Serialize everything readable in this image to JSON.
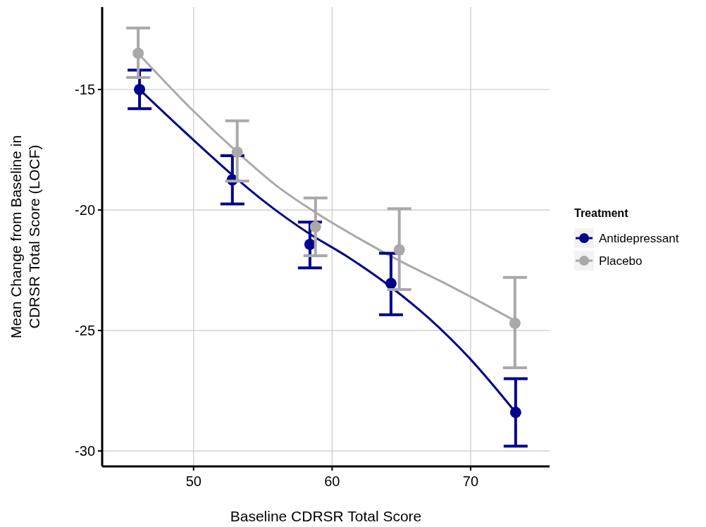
{
  "chart_data": {
    "type": "scatter",
    "xlabel": "Baseline CDRSR Total Score",
    "ylabel": "Mean Change from Baseline in CDRSR Total Score (LOCF)",
    "legend_title": "Treatment",
    "legend": "right",
    "grid": true,
    "marker": "circle",
    "xlim": [
      43.4,
      75.7
    ],
    "ylim": [
      -30.64,
      -11.58
    ],
    "xticks": [
      50,
      60,
      70
    ],
    "yticks": [
      -30,
      -25,
      -20,
      -15
    ],
    "series": [
      {
        "type": "line",
        "marker": "none",
        "color": "#00008b",
        "x": [
          46.1,
          50,
          52.8,
          55,
          58.4,
          61,
          64.25,
          67,
          70,
          73.25
        ],
        "values": [
          -15.0,
          -17.1,
          -18.55,
          -19.6,
          -21.0,
          -21.9,
          -23.2,
          -24.5,
          -26.2,
          -28.4
        ]
      },
      {
        "type": "line",
        "marker": "none",
        "color": "#a9a9a9",
        "x": [
          46,
          50,
          53.15,
          56,
          58.8,
          62,
          64.85,
          68,
          70,
          73.2
        ],
        "values": [
          -13.5,
          -15.9,
          -17.6,
          -19.0,
          -20.1,
          -21.2,
          -22.1,
          -23.0,
          -23.6,
          -24.6
        ]
      },
      {
        "name": "Antidepressant",
        "color": "#00008b",
        "x": [
          46.1,
          52.8,
          58.4,
          64.25,
          73.25
        ],
        "values": [
          -15.0,
          -18.75,
          -21.43,
          -23.05,
          -28.4
        ],
        "errors": [
          [
            -15.8,
            -14.2
          ],
          [
            -19.75,
            -17.75
          ],
          [
            -22.4,
            -20.5
          ],
          [
            -24.35,
            -21.8
          ],
          [
            -29.8,
            -27.0
          ]
        ]
      },
      {
        "name": "Placebo",
        "color": "#a9a9a9",
        "x": [
          46.0,
          53.15,
          58.8,
          64.85,
          73.2
        ],
        "values": [
          -13.5,
          -17.6,
          -20.7,
          -21.65,
          -24.7
        ],
        "errors": [
          [
            -14.5,
            -12.45
          ],
          [
            -18.8,
            -16.3
          ],
          [
            -21.9,
            -19.5
          ],
          [
            -23.3,
            -19.95
          ],
          [
            -26.55,
            -22.8
          ]
        ]
      }
    ]
  }
}
